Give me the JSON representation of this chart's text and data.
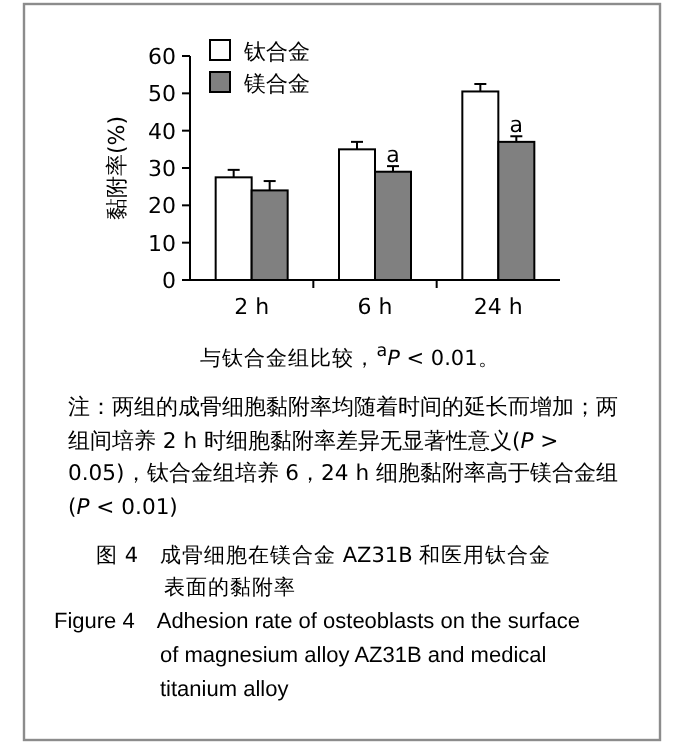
{
  "chart_data": {
    "type": "bar",
    "title": "图 4　成骨细胞在镁合金 AZ31B 和医用钛合金表面的黏附率",
    "subtitle": "Figure 4　Adhesion rate of osteoblasts on the surface of magnesium alloy AZ31B and medical titanium alloy",
    "ylabel": "黏附率(%)",
    "categories": [
      "2 h",
      "6 h",
      "24 h"
    ],
    "series": [
      {
        "name": "钛合金",
        "color": "#ffffff",
        "values": [
          27.5,
          35,
          50.5
        ],
        "errors": [
          2,
          2,
          2
        ]
      },
      {
        "name": "镁合金",
        "color": "#808080",
        "values": [
          24,
          29,
          37
        ],
        "errors": [
          2.5,
          1.5,
          1.5
        ]
      }
    ],
    "ylim": [
      0,
      60
    ],
    "yticks": [
      0,
      10,
      20,
      30,
      40,
      50,
      60
    ],
    "legend": "top left",
    "annotations": [
      {
        "text": "a",
        "x": "6 h",
        "y": 30.5
      },
      {
        "text": "a",
        "x": "24 h",
        "y": 38.5
      },
      "与钛合金组比较，$^{a}$*P* < 0.01。",
      "注：两组的成骨细胞黏附率均随着时间的延长而增加；两组间培养 2 h 时细胞黏附率差异无显著性意义(*P* > 0.05)，钛合金组培养 6，24 h 细胞黏附率高于镁合金组(*P* < 0.01)"
    ]
  }
}
